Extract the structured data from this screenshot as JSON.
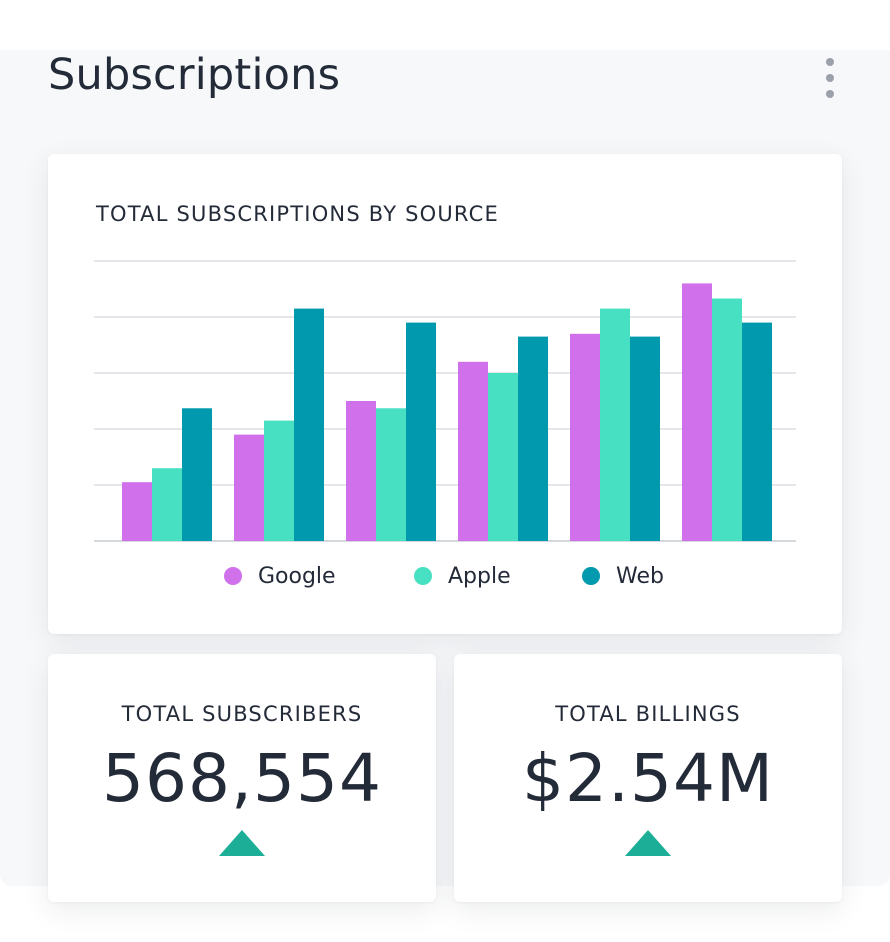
{
  "header": {
    "title": "Subscriptions",
    "menu_icon": "more-vertical-icon"
  },
  "chart_card": {
    "title": "TOTAL SUBSCRIPTIONS BY SOURCE"
  },
  "chart_data": {
    "type": "bar",
    "title": "TOTAL SUBSCRIPTIONS BY SOURCE",
    "categories": [
      "",
      "",
      "",
      "",
      "",
      ""
    ],
    "series": [
      {
        "name": "Google",
        "color": "#d070ea",
        "values": [
          1.05,
          1.9,
          2.5,
          3.2,
          3.7,
          4.6
        ]
      },
      {
        "name": "Apple",
        "color": "#48e0c2",
        "values": [
          1.3,
          2.15,
          2.37,
          3.0,
          4.15,
          4.33
        ]
      },
      {
        "name": "Web",
        "color": "#0099ae",
        "values": [
          2.37,
          4.15,
          3.9,
          3.65,
          3.65,
          3.9
        ]
      }
    ],
    "ylim": [
      0,
      5
    ],
    "grid": true,
    "legend_position": "bottom",
    "xlabel": "",
    "ylabel": ""
  },
  "stats": {
    "subscribers": {
      "label": "TOTAL SUBSCRIBERS",
      "value": "568,554",
      "trend": "up",
      "trend_icon": "triangle-up-icon",
      "trend_color": "#1cae96"
    },
    "billings": {
      "label": "TOTAL BILLINGS",
      "value": "$2.54M",
      "trend": "up",
      "trend_icon": "triangle-up-icon",
      "trend_color": "#1cae96"
    }
  }
}
